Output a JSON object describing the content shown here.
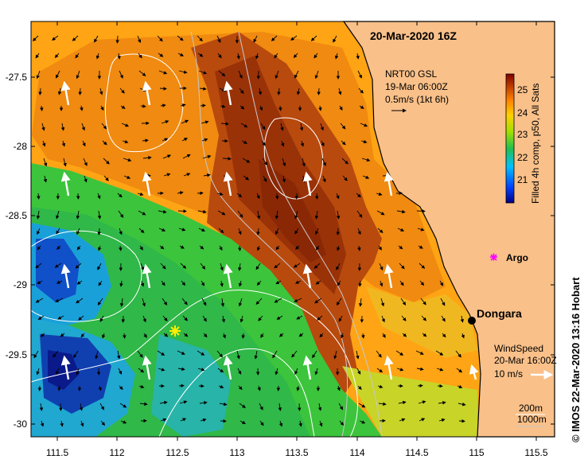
{
  "map": {
    "date_title": "20-Mar-2020 16Z",
    "current_source": {
      "line1": "NRT00 GSL",
      "line2": "19-Mar 06:00Z",
      "scale_label": "0.5m/s (1kt 6h)"
    },
    "colorbar": {
      "label": "Filled 4h comp, p50, All Sats",
      "ticks": [
        "25",
        "24",
        "23",
        "22",
        "21"
      ],
      "min": 20.4,
      "max": 25.6
    },
    "argo_label": "Argo",
    "city_label": "Dongara",
    "wind": {
      "line1": "WindSpeed",
      "line2": "20-Mar 16:00Z",
      "scale_label": "10 m/s"
    },
    "isobaths": [
      "200m",
      "1000m"
    ],
    "credit": "© IMOS 22-Mar-2020 13:16 Hobart",
    "x_ticks": [
      "111.5",
      "112",
      "112.5",
      "113",
      "113.5",
      "114",
      "114.5",
      "115",
      "115.5"
    ],
    "y_ticks": [
      "-27.5",
      "-28",
      "-28.5",
      "-29",
      "-29.5",
      "-30"
    ],
    "colors": {
      "land": "#f9c089",
      "coast": "#000000",
      "contour": "#ffffff"
    }
  }
}
